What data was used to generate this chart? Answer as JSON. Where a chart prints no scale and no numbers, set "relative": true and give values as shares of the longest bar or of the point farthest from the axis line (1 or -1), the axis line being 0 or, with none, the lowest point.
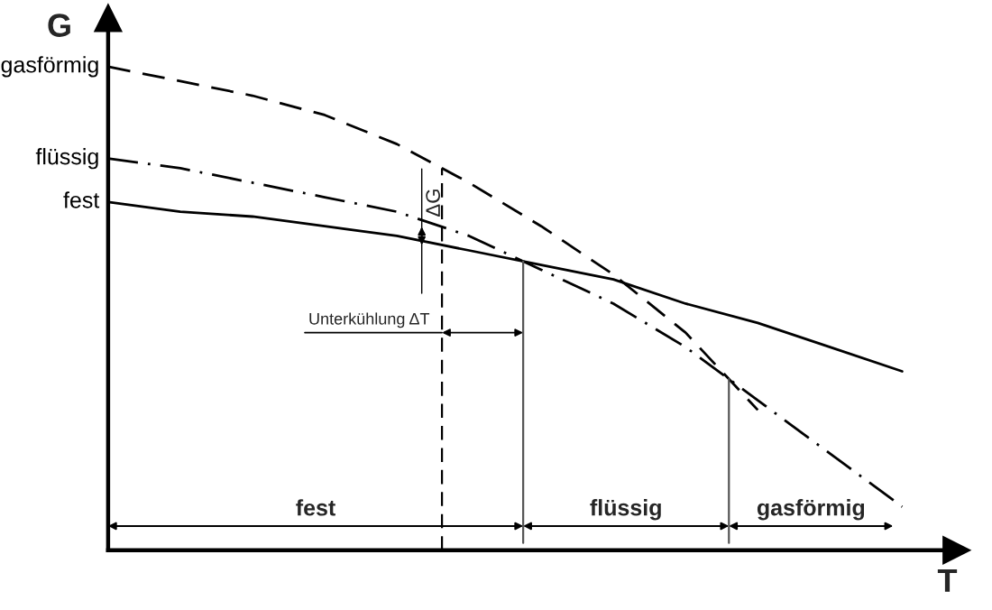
{
  "chart_data": {
    "type": "line",
    "relative": true,
    "xlabel": "T",
    "ylabel": "G",
    "categories": [
      null,
      null,
      null,
      null,
      null,
      null,
      null,
      null,
      null,
      null,
      null,
      null
    ],
    "series": [
      {
        "name": "gasförmig",
        "color": "#000000",
        "line_style": "dashed",
        "values": [
          1.0,
          0.97,
          0.94,
          0.9,
          0.84,
          0.76,
          0.67,
          0.57,
          0.45,
          0.29,
          null,
          null
        ]
      },
      {
        "name": "flüssig",
        "color": "#000000",
        "line_style": "dashdot",
        "values": [
          0.81,
          0.79,
          0.76,
          0.73,
          0.7,
          0.65,
          0.58,
          0.51,
          0.42,
          0.31,
          0.2,
          0.09
        ]
      },
      {
        "name": "fest",
        "color": "#000000",
        "line_style": "solid",
        "values": [
          0.72,
          0.7,
          0.69,
          0.67,
          0.65,
          0.62,
          0.59,
          0.56,
          0.51,
          0.47,
          0.42,
          0.37
        ]
      }
    ],
    "annotations": [
      "Unterkühlung ΔT",
      "ΔG",
      "fest",
      "flüssig",
      "gasförmig"
    ],
    "legend": "left"
  }
}
